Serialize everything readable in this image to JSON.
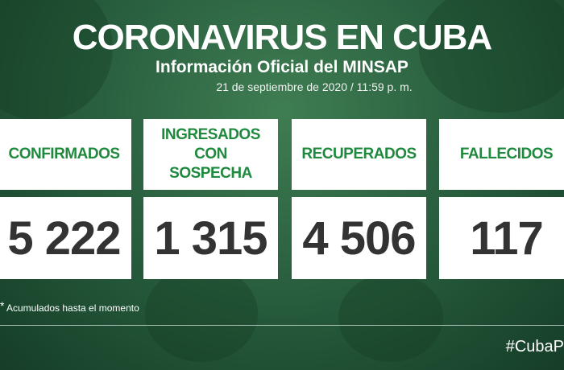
{
  "header": {
    "title": "CORONAVIRUS EN CUBA",
    "subtitle": "Información Oficial del MINSAP",
    "date": "21 de septiembre de 2020 / 11:59 p. m."
  },
  "cards": [
    {
      "label": "CONFIRMADOS",
      "value": "5 222",
      "note": "*"
    },
    {
      "label": "INGRESADOS CON SOSPECHA",
      "value": "1 315"
    },
    {
      "label": "RECUPERADOS",
      "value": "4 506",
      "note": "*"
    },
    {
      "label": "FALLECIDOS",
      "value": "117",
      "note": "*"
    }
  ],
  "footnote": {
    "mark": "*",
    "text": "Acumulados hasta el momento"
  },
  "hashtag": "#CubaP"
}
